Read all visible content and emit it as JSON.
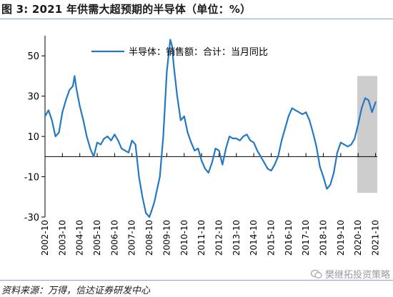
{
  "header": {
    "title": "图 3: 2021 年供需大超预期的半导体（单位：%）"
  },
  "footer": {
    "source": "资料来源：万得，信达证券研发中心",
    "watermark": "樊继拓投资策略"
  },
  "colors": {
    "series": "#2479c5",
    "highlight": "#c8c8c8",
    "rule": "#7aa6d6"
  },
  "chart_data": {
    "type": "line",
    "title": "",
    "xlabel": "",
    "ylabel": "",
    "ylim": [
      -30,
      60
    ],
    "yticks": [
      -30,
      -10,
      10,
      30,
      50
    ],
    "xlim": [
      2002.8,
      2021.9
    ],
    "xtick_labels": [
      "2002-10",
      "2003-10",
      "2004-10",
      "2005-10",
      "2006-10",
      "2007-10",
      "2008-10",
      "2009-10",
      "2010-10",
      "2011-10",
      "2012-10",
      "2013-10",
      "2014-10",
      "2015-10",
      "2016-10",
      "2017-10",
      "2018-10",
      "2019-10",
      "2020-10",
      "2021-10"
    ],
    "xtick_values": [
      2002.8,
      2003.8,
      2004.8,
      2005.8,
      2006.8,
      2007.8,
      2008.8,
      2009.8,
      2010.8,
      2011.8,
      2012.8,
      2013.8,
      2014.8,
      2015.8,
      2016.8,
      2017.8,
      2018.8,
      2019.8,
      2020.8,
      2021.8
    ],
    "legend": {
      "position": "top",
      "entries": [
        "半导体：销售额：合计：当月同比"
      ]
    },
    "highlight_region": {
      "x0": 2020.75,
      "x1": 2021.9,
      "y0": -18,
      "y1": 40
    },
    "series": [
      {
        "name": "半导体：销售额：合计：当月同比",
        "x": [
          2002.8,
          2003.0,
          2003.2,
          2003.4,
          2003.6,
          2003.8,
          2004.0,
          2004.2,
          2004.4,
          2004.5,
          2004.6,
          2004.8,
          2005.0,
          2005.2,
          2005.4,
          2005.5,
          2005.6,
          2005.8,
          2006.0,
          2006.2,
          2006.4,
          2006.6,
          2006.8,
          2007.0,
          2007.2,
          2007.4,
          2007.6,
          2007.8,
          2008.0,
          2008.2,
          2008.4,
          2008.6,
          2008.8,
          2009.0,
          2009.1,
          2009.2,
          2009.4,
          2009.6,
          2009.8,
          2010.0,
          2010.1,
          2010.2,
          2010.4,
          2010.6,
          2010.8,
          2011.0,
          2011.2,
          2011.4,
          2011.6,
          2011.8,
          2012.0,
          2012.2,
          2012.4,
          2012.6,
          2012.8,
          2013.0,
          2013.2,
          2013.4,
          2013.6,
          2013.8,
          2014.0,
          2014.2,
          2014.4,
          2014.6,
          2014.8,
          2015.0,
          2015.2,
          2015.4,
          2015.6,
          2015.8,
          2016.0,
          2016.2,
          2016.4,
          2016.6,
          2016.8,
          2017.0,
          2017.2,
          2017.4,
          2017.6,
          2017.8,
          2018.0,
          2018.2,
          2018.4,
          2018.6,
          2018.8,
          2019.0,
          2019.2,
          2019.4,
          2019.6,
          2019.8,
          2020.0,
          2020.2,
          2020.4,
          2020.6,
          2020.8,
          2021.0,
          2021.2,
          2021.4,
          2021.6,
          2021.8
        ],
        "values": [
          20,
          23,
          18,
          10,
          12,
          22,
          28,
          33,
          35,
          40,
          34,
          25,
          18,
          10,
          4,
          2,
          0,
          7,
          6,
          9,
          10,
          8,
          11,
          8,
          4,
          3,
          2,
          8,
          6,
          -10,
          -20,
          -28,
          -30,
          -25,
          -22,
          -18,
          -10,
          10,
          42,
          58,
          55,
          45,
          30,
          18,
          20,
          12,
          7,
          3,
          4,
          -2,
          -6,
          -8,
          -3,
          4,
          3,
          -4,
          4,
          10,
          9,
          9,
          8,
          10,
          11,
          8,
          7,
          3,
          0,
          -3,
          -6,
          -7,
          -4,
          0,
          8,
          14,
          20,
          24,
          23,
          22,
          21,
          22,
          18,
          12,
          5,
          -5,
          -10,
          -16,
          -14,
          -8,
          2,
          7,
          6,
          5,
          6,
          9,
          16,
          24,
          29,
          28,
          22,
          27
        ]
      }
    ]
  }
}
